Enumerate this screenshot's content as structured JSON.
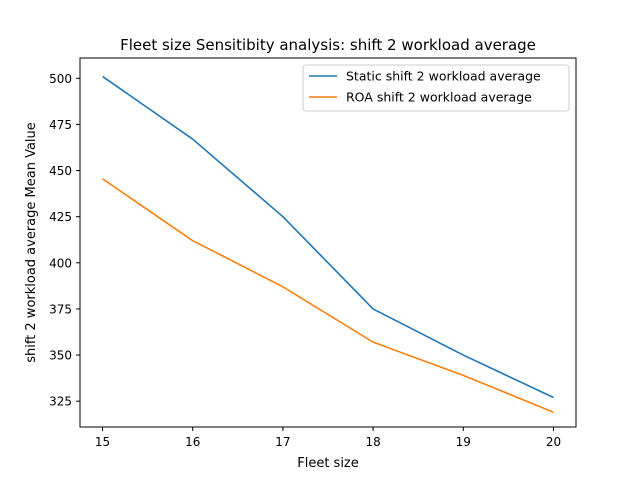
{
  "chart_data": {
    "type": "line",
    "title": "Fleet size Sensitibity analysis: shift 2 workload average",
    "xlabel": "Fleet size",
    "ylabel": "shift 2 workload average Mean Value",
    "x": [
      15,
      16,
      17,
      18,
      19,
      20
    ],
    "xlim": [
      14.75,
      20.25
    ],
    "ylim": [
      311,
      511
    ],
    "xticks": [
      15,
      16,
      17,
      18,
      19,
      20
    ],
    "yticks": [
      325,
      350,
      375,
      400,
      425,
      450,
      475,
      500
    ],
    "grid": false,
    "legend_position": "top-right",
    "series": [
      {
        "name": "Static shift 2 workload average",
        "color": "#1f77b4",
        "values": [
          501,
          467,
          425,
          375,
          350,
          327
        ]
      },
      {
        "name": "ROA shift 2 workload average",
        "color": "#ff7f0e",
        "values": [
          445.5,
          412,
          387,
          357,
          339,
          319
        ]
      }
    ]
  }
}
